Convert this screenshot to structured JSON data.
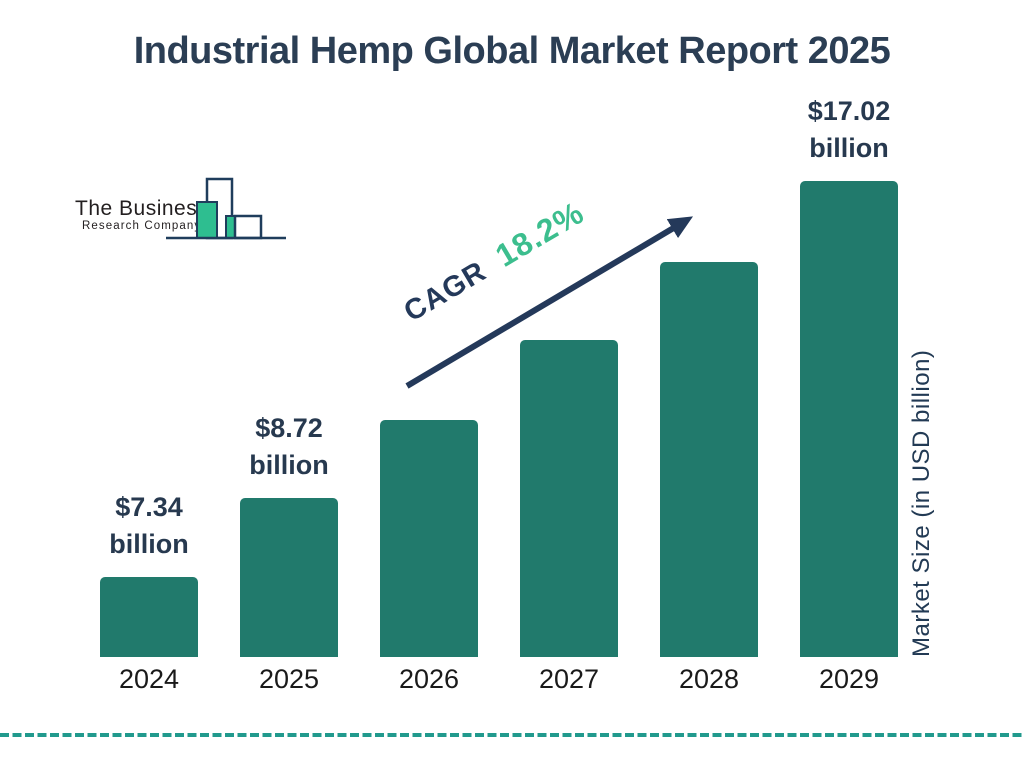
{
  "title": "Industrial Hemp Global Market Report 2025",
  "logo": {
    "name_line1": "The Business",
    "name_line2": "Research Company",
    "icon": "bar-chart-logo-icon"
  },
  "chart_data": {
    "type": "bar",
    "title": "Industrial Hemp Global Market Report 2025",
    "categories": [
      "2024",
      "2025",
      "2026",
      "2027",
      "2028",
      "2029"
    ],
    "values": [
      7.34,
      8.72,
      10.31,
      12.18,
      14.4,
      17.02
    ],
    "unit": "USD billion",
    "xlabel": "",
    "ylabel": "Market Size (in USD billion)",
    "grid": false,
    "legend_position": "none",
    "bar_color": "#217A6C",
    "bar_labels": [
      {
        "line1": "$7.34",
        "line2": "billion"
      },
      {
        "line1": "$8.72",
        "line2": "billion"
      },
      null,
      null,
      null,
      {
        "line1": "$17.02",
        "line2": "billion"
      }
    ],
    "cagr": {
      "label": "CAGR",
      "value": "18.2%"
    }
  },
  "colors": {
    "title_text": "#2B3E54",
    "bar_fill": "#217A6C",
    "value_label_text": "#27394F",
    "axis_label_text": "#1A1A1A",
    "cagr_label": "#24395A",
    "cagr_value": "#3CBE8E",
    "arrow": "#24395A",
    "dashed_line": "#219A8D",
    "logo_outline": "#1F3D5C",
    "logo_fill": "#2EBE90",
    "logo_text": "#231F20"
  }
}
